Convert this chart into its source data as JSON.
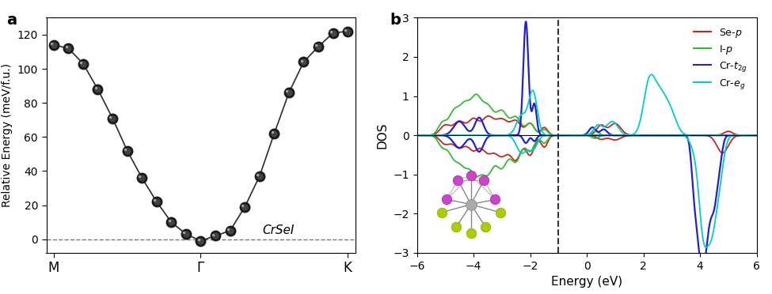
{
  "panel_a": {
    "title": "a",
    "ylabel": "Relative Energy (meV/f.u.)",
    "xtick_labels": [
      "M",
      "Γ",
      "K"
    ],
    "annotation": "CrSeI",
    "ylim": [
      -8,
      130
    ],
    "yticks": [
      0,
      20,
      40,
      60,
      80,
      100,
      120
    ],
    "x_points": [
      0,
      1,
      2,
      3,
      4,
      5,
      6,
      7,
      8,
      9,
      10,
      11,
      12,
      13,
      14,
      15,
      16,
      17,
      18,
      19,
      20
    ],
    "y_points": [
      114,
      112,
      103,
      88,
      71,
      52,
      36,
      22,
      10,
      3,
      -1,
      2,
      5,
      19,
      37,
      62,
      86,
      104,
      113,
      121,
      122
    ],
    "m_idx": 0,
    "gamma_idx": 10,
    "k_idx": 20,
    "line_color": "#2a2a2a",
    "marker_face": "#2a2a2a",
    "marker_highlight": "#888888",
    "zero_line_color": "#777777"
  },
  "panel_b": {
    "title": "b",
    "xlabel": "Energy (eV)",
    "ylabel": "DOS",
    "xlim": [
      -6,
      6
    ],
    "ylim": [
      -3,
      3
    ],
    "yticks": [
      -3,
      -2,
      -1,
      0,
      1,
      2,
      3
    ],
    "xticks": [
      -6,
      -4,
      -2,
      0,
      2,
      4,
      6
    ],
    "fermi_energy": -1.0,
    "legend_colors": [
      "#cc2222",
      "#33bb33",
      "#2222cc",
      "#00cccc"
    ],
    "line_colors": {
      "Se_p": "#cc2222",
      "I_p": "#33bb33",
      "Cr_t2g": "#2222cc",
      "Cr_eg": "#00cccc"
    }
  },
  "background_color": "#ffffff"
}
